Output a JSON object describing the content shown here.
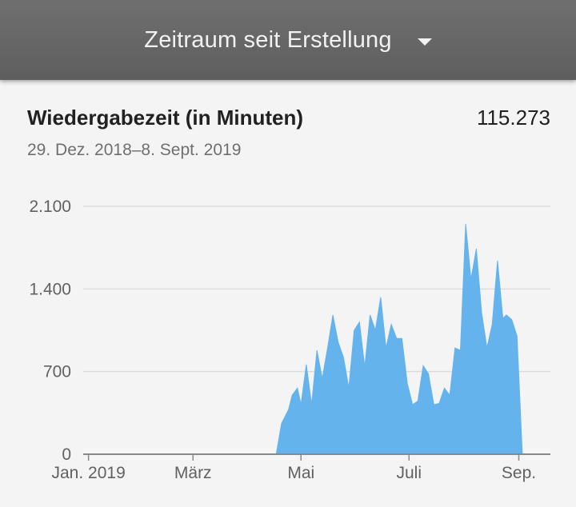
{
  "header": {
    "period_label": "Zeitraum seit Erstellung"
  },
  "card": {
    "title": "Wiedergabezeit (in Minuten)",
    "total": "115.273",
    "date_range": "29. Dez. 2018–8. Sept. 2019"
  },
  "colors": {
    "area": "#64b3ec",
    "grid": "#dcdcdc",
    "axis": "#8a8a8a"
  },
  "chart_data": {
    "type": "area",
    "title": "Wiedergabezeit (in Minuten)",
    "x_axis": {
      "range": [
        "2018-12-29",
        "2019-09-08"
      ],
      "ticks": [
        {
          "date": "2019-01-01",
          "label": "Jan. 2019"
        },
        {
          "date": "2019-03-01",
          "label": "März"
        },
        {
          "date": "2019-05-01",
          "label": "Mai"
        },
        {
          "date": "2019-07-01",
          "label": "Juli"
        },
        {
          "date": "2019-09-01",
          "label": "Sep."
        }
      ]
    },
    "y_axis": {
      "range": [
        0,
        2100
      ],
      "ticks": [
        {
          "value": 0,
          "label": "0"
        },
        {
          "value": 700,
          "label": "700"
        },
        {
          "value": 1400,
          "label": "1.400"
        },
        {
          "value": 2100,
          "label": "2.100"
        }
      ]
    },
    "grid": true,
    "series": [
      {
        "x": [
          "2018-12-29",
          "2019-04-17",
          "2019-04-20",
          "2019-04-24",
          "2019-04-26",
          "2019-04-29",
          "2019-05-01",
          "2019-05-04",
          "2019-05-07",
          "2019-05-10",
          "2019-05-13",
          "2019-05-16",
          "2019-05-19",
          "2019-05-22",
          "2019-05-25",
          "2019-05-28",
          "2019-05-31",
          "2019-06-03",
          "2019-06-06",
          "2019-06-09",
          "2019-06-12",
          "2019-06-15",
          "2019-06-18",
          "2019-06-21",
          "2019-06-24",
          "2019-06-27",
          "2019-06-30",
          "2019-07-03",
          "2019-07-06",
          "2019-07-09",
          "2019-07-12",
          "2019-07-15",
          "2019-07-18",
          "2019-07-21",
          "2019-07-24",
          "2019-07-27",
          "2019-07-30",
          "2019-08-02",
          "2019-08-05",
          "2019-08-08",
          "2019-08-11",
          "2019-08-14",
          "2019-08-17",
          "2019-08-20",
          "2019-08-23",
          "2019-08-25",
          "2019-08-28",
          "2019-08-31",
          "2019-09-03",
          "2019-09-06",
          "2019-09-08"
        ],
        "y": [
          0,
          0,
          260,
          380,
          500,
          560,
          420,
          760,
          420,
          880,
          640,
          900,
          1180,
          950,
          820,
          560,
          1050,
          1120,
          740,
          1180,
          1050,
          1330,
          900,
          1100,
          980,
          980,
          600,
          420,
          450,
          750,
          680,
          420,
          430,
          560,
          500,
          900,
          880,
          1950,
          1480,
          1740,
          1200,
          900,
          1100,
          1640,
          1150,
          1180,
          1140,
          1000,
          0,
          0,
          0
        ]
      }
    ]
  }
}
